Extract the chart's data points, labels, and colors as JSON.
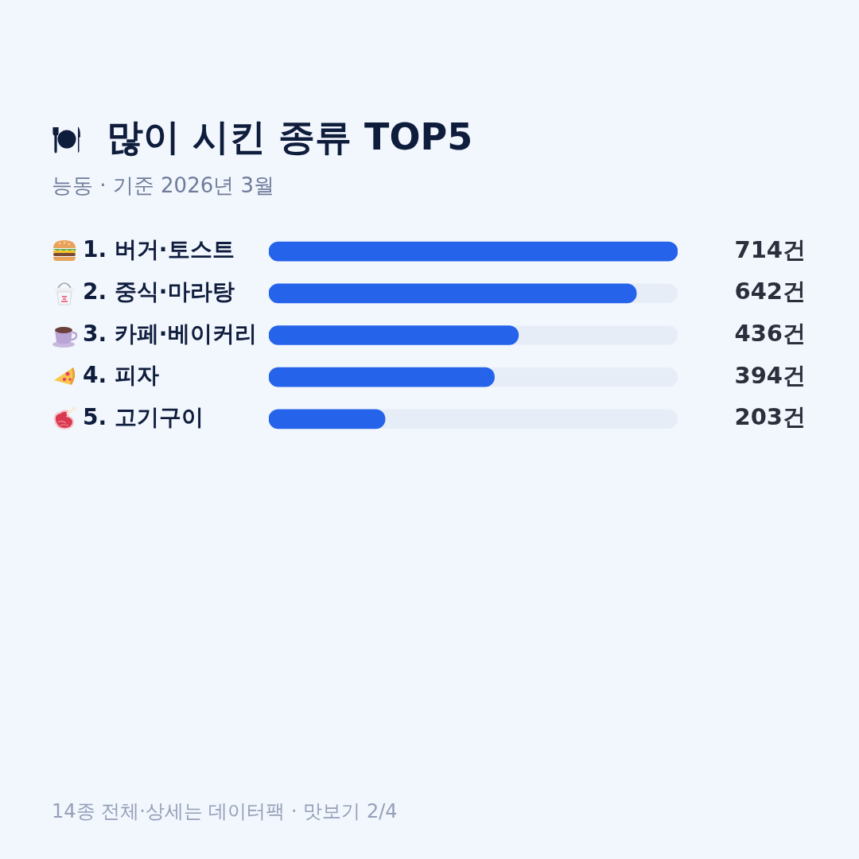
{
  "chart_data": {
    "type": "bar",
    "orientation": "horizontal",
    "title": "많이 시킨 종류 TOP5",
    "subtitle": "능동 · 기준 2026년 3월",
    "categories": [
      "1. 버거·토스트",
      "2. 중식·마라탕",
      "3. 카페·베이커리",
      "4. 피자",
      "5. 고기구이"
    ],
    "values": [
      714,
      642,
      436,
      394,
      203
    ],
    "value_labels": [
      "714건",
      "642건",
      "436건",
      "394건",
      "203건"
    ],
    "color": "#2563eb",
    "xlim": [
      0,
      714
    ],
    "tick_labels": "y",
    "annotations": [
      "14종 전체·상세는 데이터팩 · 맛보기 2/4"
    ]
  }
}
